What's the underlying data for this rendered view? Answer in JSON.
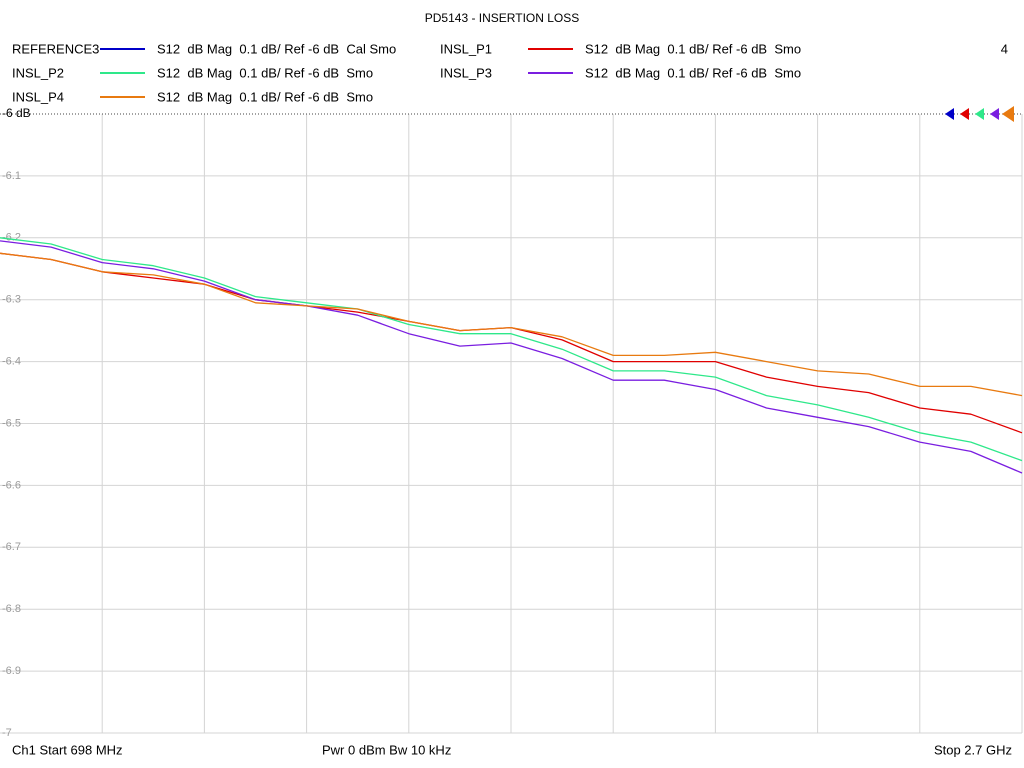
{
  "chart_data": {
    "type": "line",
    "title": "PD5143 - INSERTION LOSS",
    "channel_label": "4",
    "start_label": "Ch1  Start  698 MHz",
    "power_label": "Pwr  0 dBm  Bw  10 kHz",
    "stop_label": "Stop  2.7 GHz",
    "x": [
      698,
      798.1,
      898.2,
      998.3,
      1098.4,
      1198.5,
      1298.6,
      1398.7,
      1498.8,
      1598.9,
      1699,
      1799.1,
      1899.2,
      1999.3,
      2099.4,
      2199.5,
      2299.6,
      2399.7,
      2499.8,
      2599.9,
      2700
    ],
    "xlim": [
      698,
      2700
    ],
    "ylim": [
      -7,
      -6
    ],
    "yticks": [
      {
        "value": -6,
        "label": "-6 dB"
      },
      -6.1,
      -6.2,
      -6.3,
      -6.4,
      -6.5,
      -6.6,
      -6.7,
      -6.8,
      -6.9,
      -7
    ],
    "grid": true,
    "series": [
      {
        "name": "REFERENCE3",
        "description": "S12  dB Mag  0.1 dB/ Ref -6 dB  Cal Smo",
        "color": "#0000c8",
        "values": [
          null,
          null,
          null,
          null,
          null,
          null,
          null,
          null,
          null,
          null,
          null,
          null,
          null,
          null,
          null,
          null,
          null,
          null,
          null,
          null,
          null
        ]
      },
      {
        "name": "INSL_P1",
        "description": "S12  dB Mag  0.1 dB/ Ref -6 dB  Smo",
        "color": "#e00000",
        "values": [
          -6.225,
          -6.235,
          -6.255,
          -6.265,
          -6.275,
          -6.3,
          -6.31,
          -6.32,
          -6.335,
          -6.35,
          -6.345,
          -6.365,
          -6.4,
          -6.4,
          -6.4,
          -6.425,
          -6.44,
          -6.45,
          -6.475,
          -6.485,
          -6.515
        ]
      },
      {
        "name": "INSL_P2",
        "description": "S12  dB Mag  0.1 dB/ Ref -6 dB  Smo",
        "color": "#2ee88a",
        "values": [
          -6.2,
          -6.21,
          -6.235,
          -6.245,
          -6.265,
          -6.295,
          -6.305,
          -6.315,
          -6.34,
          -6.355,
          -6.355,
          -6.38,
          -6.415,
          -6.415,
          -6.425,
          -6.455,
          -6.47,
          -6.49,
          -6.515,
          -6.53,
          -6.56
        ]
      },
      {
        "name": "INSL_P3",
        "description": "S12  dB Mag  0.1 dB/ Ref -6 dB  Smo",
        "color": "#7a1ee0",
        "values": [
          -6.205,
          -6.215,
          -6.24,
          -6.25,
          -6.27,
          -6.3,
          -6.31,
          -6.325,
          -6.355,
          -6.375,
          -6.37,
          -6.395,
          -6.43,
          -6.43,
          -6.445,
          -6.475,
          -6.49,
          -6.505,
          -6.53,
          -6.545,
          -6.58
        ]
      },
      {
        "name": "INSL_P4",
        "description": "S12  dB Mag  0.1 dB/ Ref -6 dB  Smo",
        "color": "#e87a10",
        "values": [
          -6.225,
          -6.235,
          -6.255,
          -6.26,
          -6.275,
          -6.305,
          -6.31,
          -6.315,
          -6.335,
          -6.35,
          -6.345,
          -6.36,
          -6.39,
          -6.39,
          -6.385,
          -6.4,
          -6.415,
          -6.42,
          -6.44,
          -6.44,
          -6.455
        ]
      }
    ]
  }
}
